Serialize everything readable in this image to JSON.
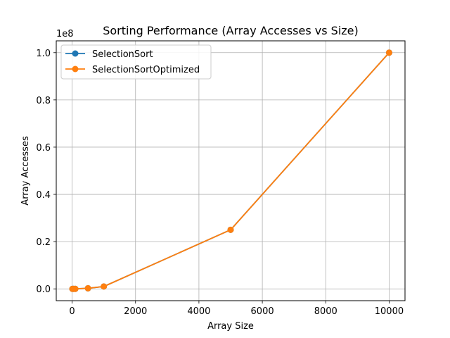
{
  "chart_data": {
    "type": "line",
    "title": "Sorting Performance (Array Accesses vs Size)",
    "xlabel": "Array Size",
    "ylabel": "Array Accesses",
    "y_offset_label": "1e8",
    "xlim": [
      -500,
      10500
    ],
    "ylim": [
      -0.05,
      1.05
    ],
    "x_ticks": [
      0,
      2000,
      4000,
      6000,
      8000,
      10000
    ],
    "x_tick_labels": [
      "0",
      "2000",
      "4000",
      "6000",
      "8000",
      "10000"
    ],
    "y_ticks": [
      0.0,
      0.2,
      0.4,
      0.6,
      0.8,
      1.0
    ],
    "y_tick_labels": [
      "0.0",
      "0.2",
      "0.4",
      "0.6",
      "0.8",
      "1.0"
    ],
    "grid": true,
    "legend_position": "top-left",
    "x": [
      10,
      50,
      100,
      500,
      1000,
      5000,
      10000
    ],
    "series": [
      {
        "name": "SelectionSort",
        "color": "#1f77b4",
        "values": [
          1e-06,
          2.5e-05,
          0.0001,
          0.0025,
          0.01,
          0.25,
          1.0
        ]
      },
      {
        "name": "SelectionSortOptimized",
        "color": "#ff7f0e",
        "values": [
          1e-06,
          2.5e-05,
          0.0001,
          0.0025,
          0.01,
          0.25,
          1.0
        ]
      }
    ]
  }
}
